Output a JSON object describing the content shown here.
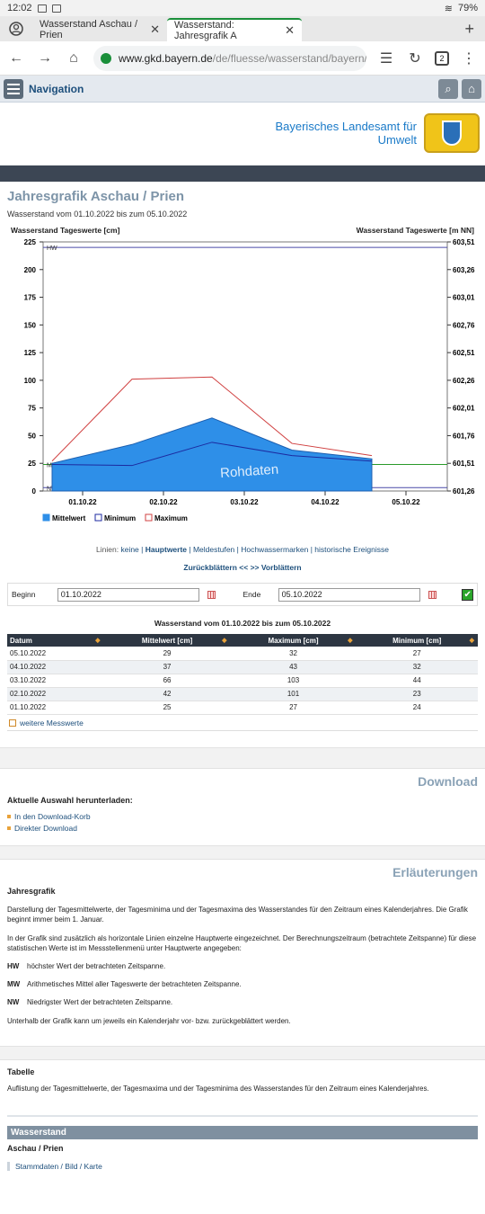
{
  "status": {
    "time": "12:02",
    "battery": "79%"
  },
  "tabs": [
    {
      "label": "Wasserstand Aschau / Prien",
      "active": false
    },
    {
      "label": "Wasserstand: Jahresgrafik A",
      "active": true
    }
  ],
  "url": {
    "host": "www.gkd.bayern.de",
    "path": "/de/fluesse/wasserstand/bayern/asch",
    "tab_count": "2"
  },
  "nav": {
    "label": "Navigation"
  },
  "header": {
    "org_line1": "Bayerisches Landesamt für",
    "org_line2": "Umwelt"
  },
  "page": {
    "title": "Jahresgrafik Aschau / Prien",
    "subtitle": "Wasserstand vom 01.10.2022 bis zum 05.10.2022"
  },
  "chart_data": {
    "type": "area",
    "ylabel_left": "Wasserstand Tageswerte [cm]",
    "ylabel_right": "Wasserstand Tageswerte [m NN]",
    "categories": [
      "01.10.22",
      "02.10.22",
      "03.10.22",
      "04.10.22",
      "05.10.22"
    ],
    "yticks_left": [
      0,
      25,
      50,
      75,
      100,
      125,
      150,
      175,
      200,
      225
    ],
    "yticks_right": [
      "601,26",
      "601,51",
      "601,76",
      "602,01",
      "602,26",
      "602,51",
      "602,76",
      "603,01",
      "603,26",
      "603,51"
    ],
    "ylim": [
      0,
      225
    ],
    "series": [
      {
        "name": "Mittelwert",
        "color": "#2e8fe8",
        "values": [
          25,
          42,
          66,
          37,
          29
        ]
      },
      {
        "name": "Minimum",
        "color": "#1c2aa0",
        "values": [
          24,
          23,
          44,
          32,
          27
        ]
      },
      {
        "name": "Maximum",
        "color": "#d04040",
        "values": [
          27,
          101,
          103,
          43,
          32
        ]
      }
    ],
    "reference_lines": [
      {
        "label": "HW",
        "value": 220,
        "color": "#4a4aa8"
      },
      {
        "label": "MW",
        "value": 24,
        "color": "#2a9a2a"
      },
      {
        "label": "NW",
        "value": 3,
        "color": "#4a4aa8"
      }
    ],
    "watermark": "Rohdaten",
    "legend_position": "bottom-left"
  },
  "lines_row": {
    "prefix": "Linien:",
    "items": [
      "keine",
      "Hauptwerte",
      "Meldestufen",
      "Hochwassermarken",
      "historische Ereignisse"
    ]
  },
  "paging": {
    "back": "Zurückblättern <<",
    "forward": ">> Vorblättern"
  },
  "daterange": {
    "begin_label": "Beginn",
    "begin_value": "01.10.2022",
    "end_label": "Ende",
    "end_value": "05.10.2022"
  },
  "table": {
    "title": "Wasserstand vom 01.10.2022 bis zum 05.10.2022",
    "headers": [
      "Datum",
      "Mittelwert [cm]",
      "Maximum [cm]",
      "Minimum [cm]"
    ],
    "rows": [
      [
        "05.10.2022",
        "29",
        "32",
        "27"
      ],
      [
        "04.10.2022",
        "37",
        "43",
        "32"
      ],
      [
        "03.10.2022",
        "66",
        "103",
        "44"
      ],
      [
        "02.10.2022",
        "42",
        "101",
        "23"
      ],
      [
        "01.10.2022",
        "25",
        "27",
        "24"
      ]
    ],
    "more": "weitere Messwerte"
  },
  "download": {
    "head": "Download",
    "sub": "Aktuelle Auswahl herunterladen:",
    "links": [
      "In den Download-Korb",
      "Direkter Download"
    ]
  },
  "explain": {
    "head": "Erläuterungen",
    "sub": "Jahresgrafik",
    "p1": "Darstellung der Tagesmittelwerte, der Tagesminima und der Tagesmaxima des Wasserstandes für den Zeitraum eines Kalenderjahres. Die Grafik beginnt immer beim 1. Januar.",
    "p2": "In der Grafik sind zusätzlich als horizontale Linien einzelne Hauptwerte eingezeichnet. Der Berechnungszeitraum (betrachtete Zeitspanne) für diese statistischen Werte ist im Messstellenmenü unter Hauptwerte angegeben:",
    "defs": [
      {
        "k": "HW",
        "v": "höchster Wert der betrachteten Zeitspanne."
      },
      {
        "k": "MW",
        "v": "Arithmetisches Mittel aller Tageswerte der betrachteten Zeitspanne."
      },
      {
        "k": "NW",
        "v": "Niedrigster Wert der betrachteten Zeitspanne."
      }
    ],
    "p3": "Unterhalb der Grafik kann um jeweils ein Kalenderjahr vor- bzw. zurückgeblättert werden.",
    "sub2": "Tabelle",
    "p4": "Auflistung der Tagesmittelwerte, der Tagesmaxima und der Tagesminima des Wasserstandes für den Zeitraum eines Kalenderjahres."
  },
  "footer": {
    "head": "Wasserstand",
    "loc": "Aschau / Prien",
    "link": "Stammdaten / Bild / Karte"
  }
}
